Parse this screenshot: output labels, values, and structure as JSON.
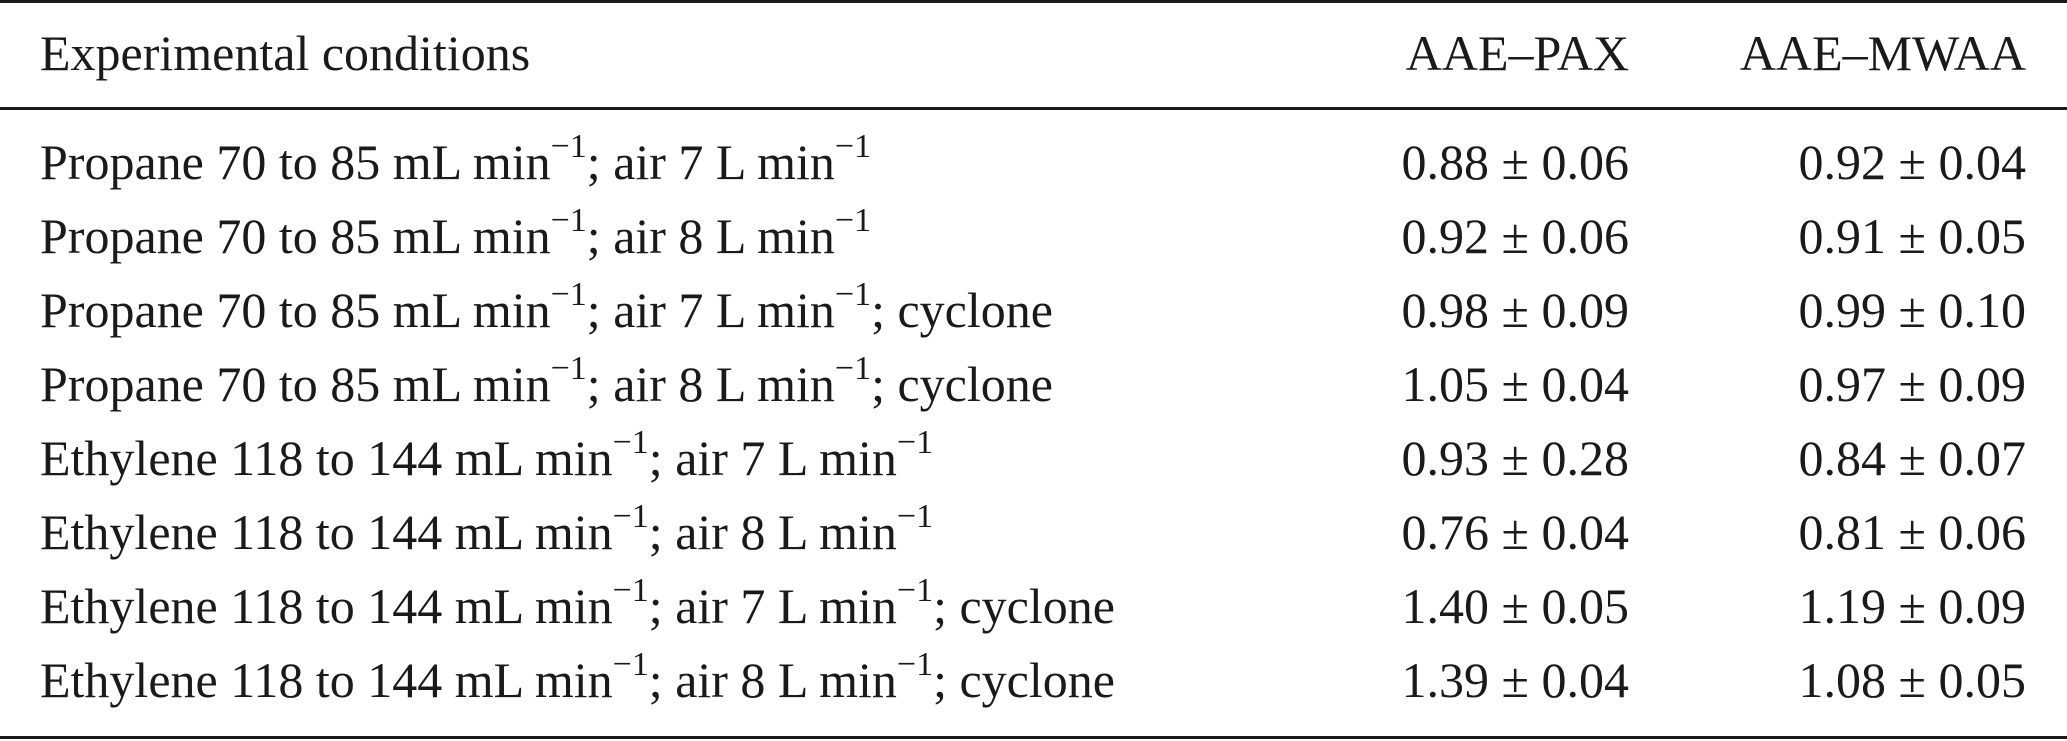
{
  "table": {
    "header": [
      "Experimental conditions",
      "AAE–PAX",
      "AAE–MWAA"
    ],
    "rows": [
      [
        [
          "Propane 70 to 85 mL min",
          "−1",
          "; air 7 L min",
          "−1"
        ],
        "0.88 ± 0.06",
        "0.92 ± 0.04"
      ],
      [
        [
          "Propane 70 to 85 mL min",
          "−1",
          "; air 8 L min",
          "−1"
        ],
        "0.92 ± 0.06",
        "0.91 ± 0.05"
      ],
      [
        [
          "Propane 70 to 85 mL min",
          "−1",
          "; air 7 L min",
          "−1",
          "; cyclone"
        ],
        "0.98 ± 0.09",
        "0.99 ± 0.10"
      ],
      [
        [
          "Propane 70 to 85 mL min",
          "−1",
          "; air 8 L min",
          "−1",
          "; cyclone"
        ],
        "1.05 ± 0.04",
        "0.97 ± 0.09"
      ],
      [
        [
          "Ethylene 118 to 144 mL min",
          "−1",
          "; air 7 L min",
          "−1"
        ],
        "0.93 ± 0.28",
        "0.84 ± 0.07"
      ],
      [
        [
          "Ethylene 118 to 144 mL min",
          "−1",
          "; air 8 L min",
          "−1"
        ],
        "0.76 ± 0.04",
        "0.81 ± 0.06"
      ],
      [
        [
          "Ethylene 118 to 144 mL min",
          "−1",
          "; air 7 L min",
          "−1",
          "; cyclone"
        ],
        "1.40 ± 0.05",
        "1.19 ± 0.09"
      ],
      [
        [
          "Ethylene 118 to 144 mL min",
          "−1",
          "; air 8 L min",
          "−1",
          "; cyclone"
        ],
        "1.39 ± 0.04",
        "1.08 ± 0.05"
      ]
    ]
  }
}
